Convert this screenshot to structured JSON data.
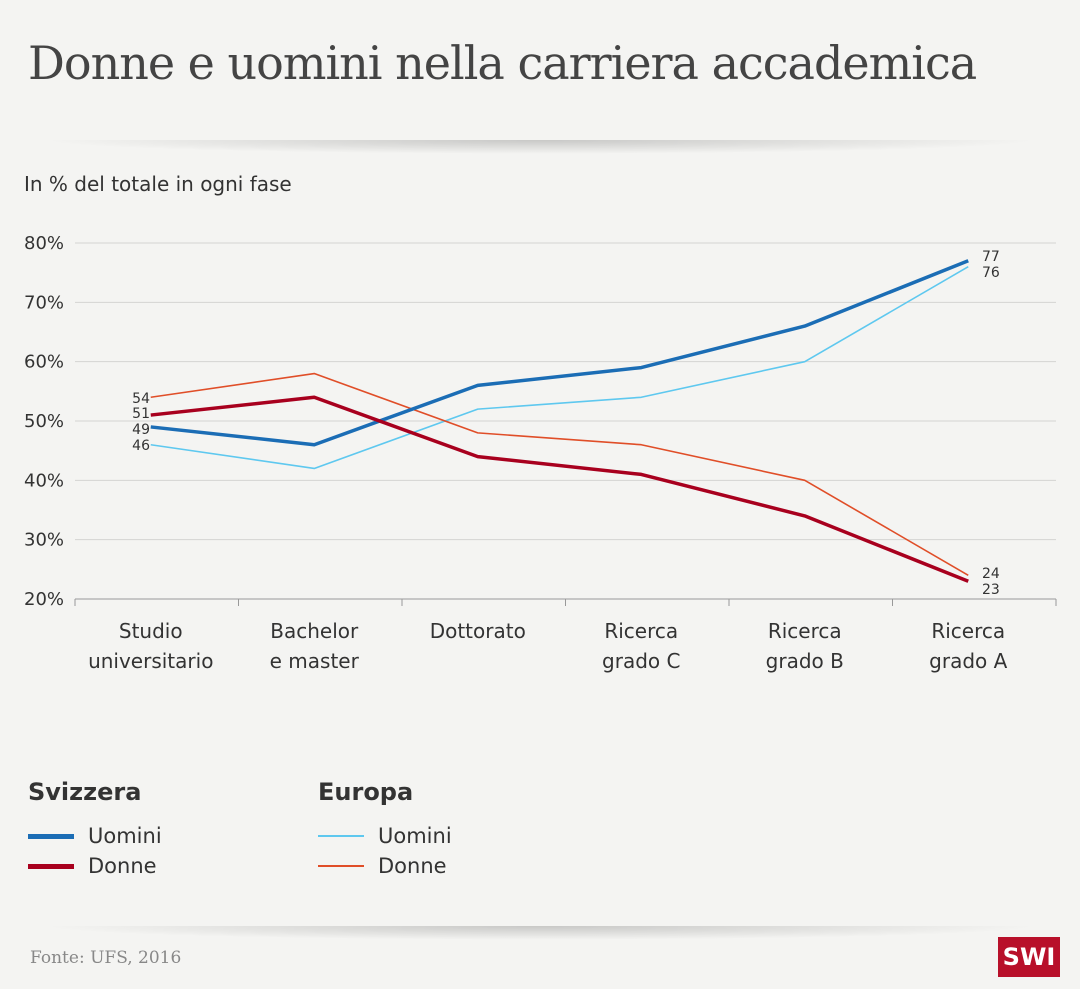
{
  "title": "Donne e uomini nella carriera accademica",
  "subtitle": "In % del totale in ogni fase",
  "source": "Fonte: UFS, 2016",
  "logo": "SWI",
  "legend": {
    "group1": "Svizzera",
    "group2": "Europa",
    "uomini": "Uomini",
    "donne": "Donne"
  },
  "chart_data": {
    "type": "line",
    "title": "Donne e uomini nella carriera accademica",
    "ylabel": "In % del totale in ogni fase",
    "ylim": [
      20,
      80
    ],
    "yticks": [
      20,
      30,
      40,
      50,
      60,
      70,
      80
    ],
    "ytick_labels": [
      "20%",
      "30%",
      "40%",
      "50%",
      "60%",
      "70%",
      "80%"
    ],
    "categories": [
      [
        "Studio",
        "universitario"
      ],
      [
        "Bachelor",
        "e master"
      ],
      [
        "Dottorato"
      ],
      [
        "Ricerca",
        "grado C"
      ],
      [
        "Ricerca",
        "grado B"
      ],
      [
        "Ricerca",
        "grado A"
      ]
    ],
    "series": [
      {
        "name": "Svizzera Uomini",
        "color": "#1b6db5",
        "width": 3.5,
        "values": [
          49,
          46,
          56,
          59,
          66,
          77
        ]
      },
      {
        "name": "Svizzera Donne",
        "color": "#a8001e",
        "width": 3.5,
        "values": [
          51,
          54,
          44,
          41,
          34,
          23
        ]
      },
      {
        "name": "Europa Uomini",
        "color": "#5ec8ef",
        "width": 1.6,
        "values": [
          46,
          42,
          52,
          54,
          60,
          76
        ]
      },
      {
        "name": "Europa Donne",
        "color": "#e04e28",
        "width": 1.6,
        "values": [
          54,
          58,
          48,
          46,
          40,
          24
        ]
      }
    ],
    "start_labels": [
      "54",
      "51",
      "49",
      "46"
    ],
    "end_labels": [
      "77",
      "76",
      "24",
      "23"
    ],
    "grid": true
  }
}
